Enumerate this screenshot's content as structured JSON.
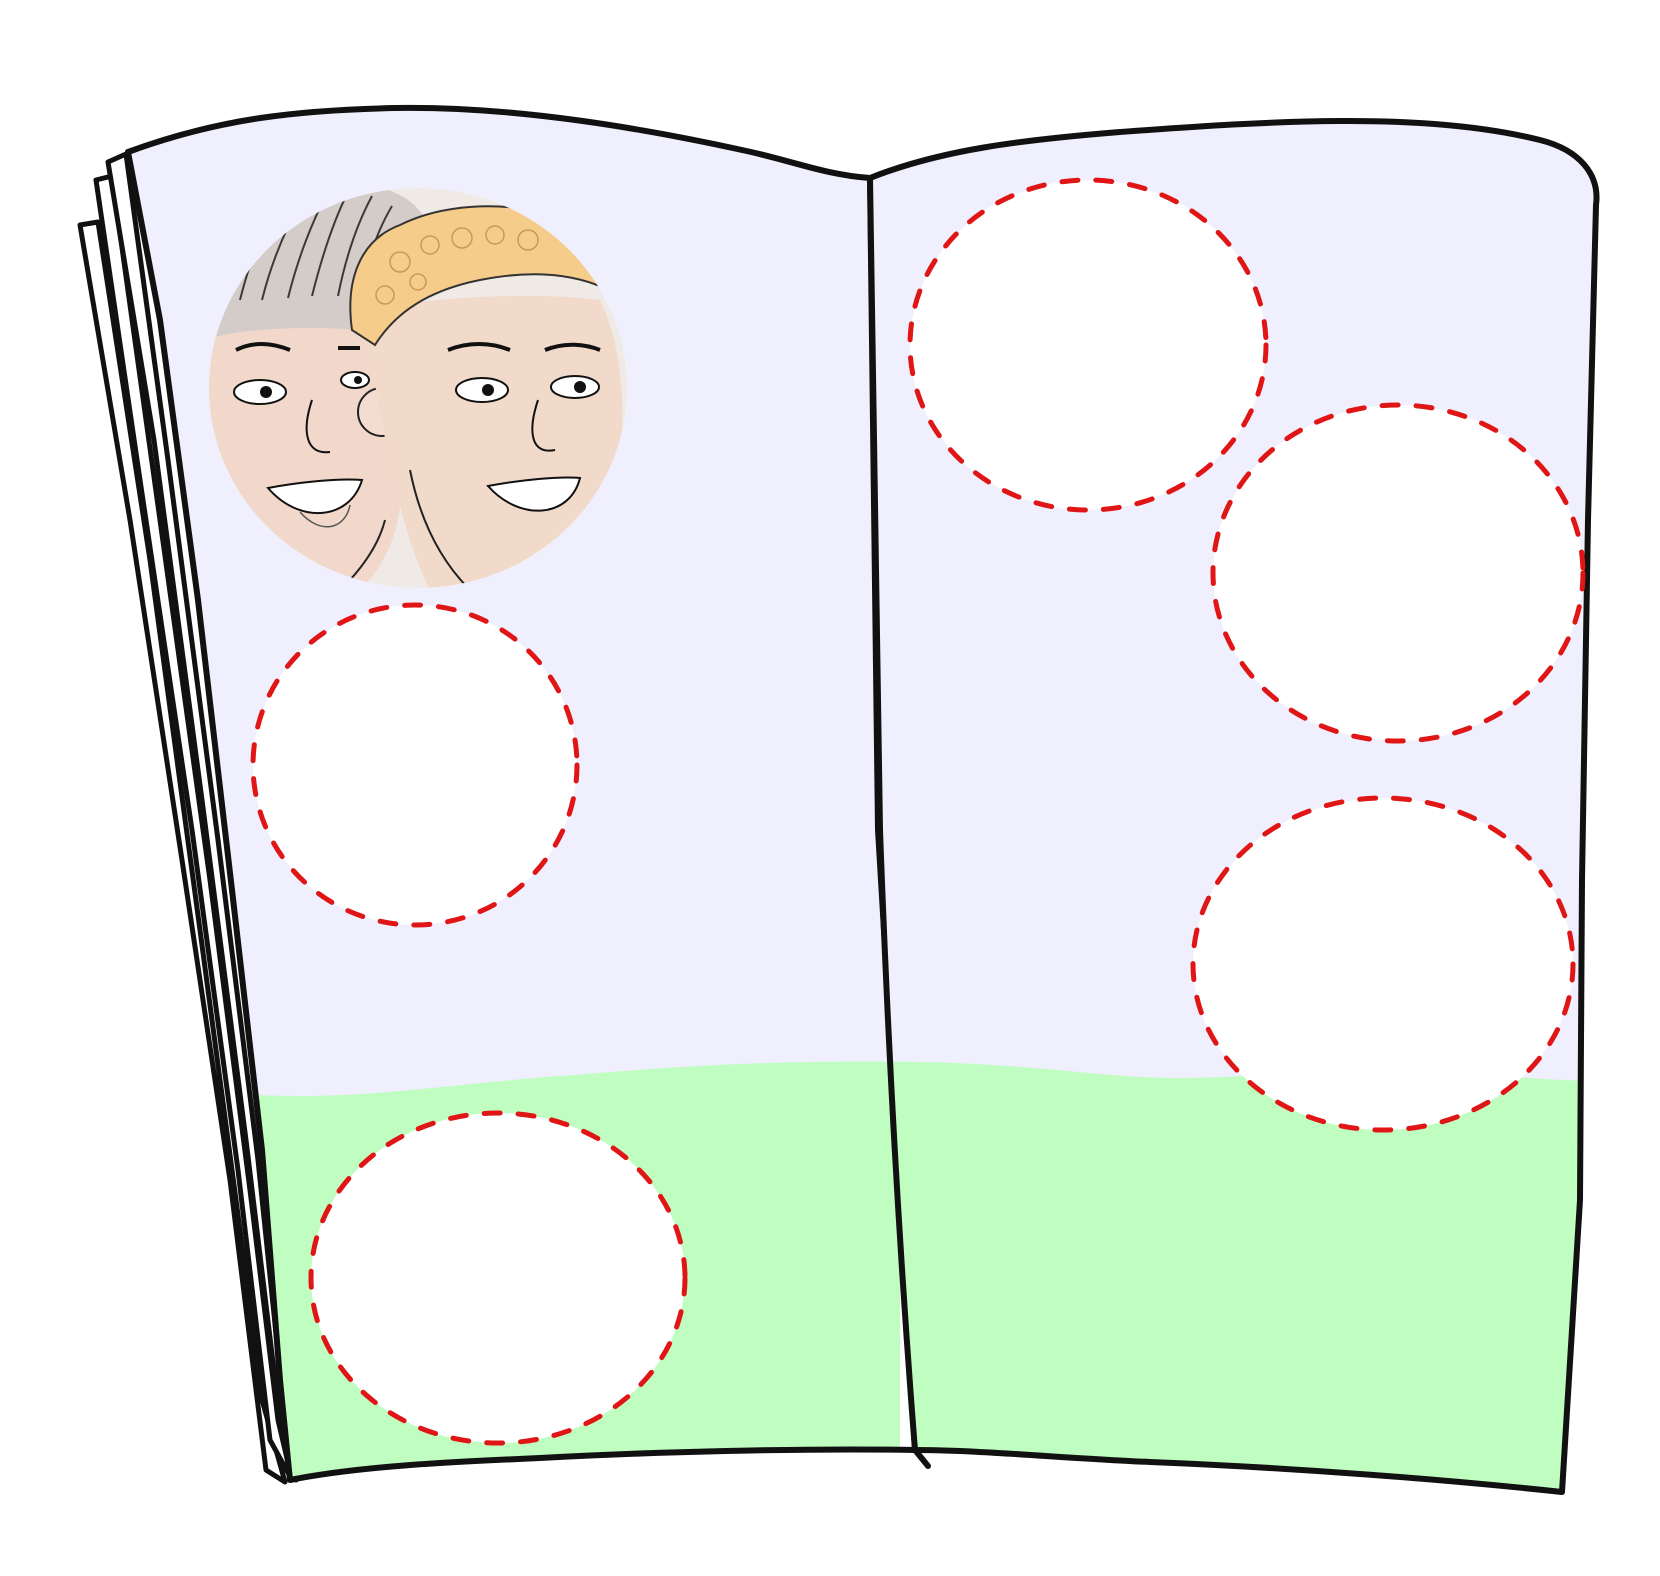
{
  "colors": {
    "sky": "#efeffd",
    "grass": "#c0fdc0",
    "ink": "#111111",
    "slot_fill": "#ffffff",
    "slot_border": "#e01515",
    "skin": "#f3ddd0",
    "skin_shade": "#ecc9b6",
    "hair_blond": "#f6cf8e",
    "hair_grey": "#cfc7c4",
    "lip": "#ffffff"
  },
  "album": {
    "pages": [
      {
        "side": "left",
        "slots": [
          {
            "state": "filled",
            "content": "two-friends-portrait"
          },
          {
            "state": "empty"
          },
          {
            "state": "empty"
          }
        ]
      },
      {
        "side": "right",
        "slots": [
          {
            "state": "empty"
          },
          {
            "state": "empty"
          },
          {
            "state": "empty"
          }
        ]
      }
    ]
  }
}
